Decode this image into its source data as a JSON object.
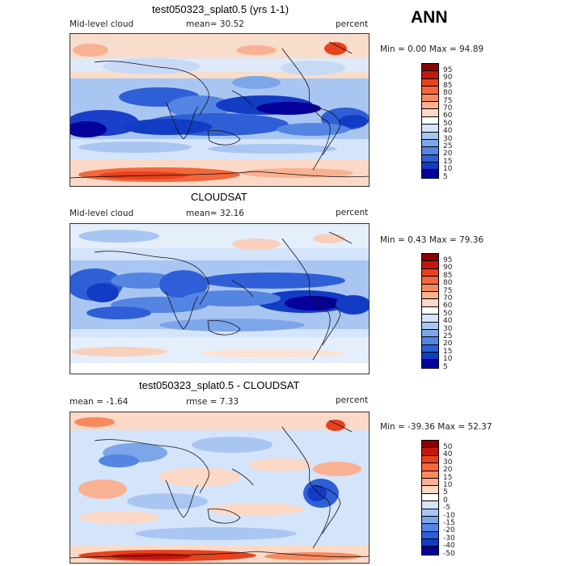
{
  "season": "ANN",
  "panels": [
    {
      "title": "test050323_splat0.5 (yrs 1-1)",
      "left_label": "Mid-level cloud",
      "mid_label": "mean=  30.52",
      "right_label": "percent",
      "minmax": "Min =    0.00 Max =  94.89",
      "colorbar_ticks": [
        "95",
        "90",
        "85",
        "80",
        "75",
        "70",
        "60",
        "50",
        "40",
        "30",
        "25",
        "20",
        "15",
        "10",
        "5"
      ],
      "colorbar_colors": [
        "#8b0000",
        "#c2180c",
        "#e8421e",
        "#f4673c",
        "#f7895f",
        "#f9b194",
        "#fcd9c6",
        "#ffffff",
        "#d4e4fa",
        "#a9c6f2",
        "#7da5ea",
        "#5585e2",
        "#2f5fd6",
        "#123cc4",
        "#06009a"
      ]
    },
    {
      "title": "CLOUDSAT",
      "left_label": "Mid-level cloud",
      "mid_label": "mean=  32.16",
      "right_label": "percent",
      "minmax": "Min =    0.43 Max =  79.36",
      "colorbar_ticks": [
        "95",
        "90",
        "85",
        "80",
        "75",
        "70",
        "60",
        "50",
        "40",
        "30",
        "25",
        "20",
        "15",
        "10",
        "5"
      ],
      "colorbar_colors": [
        "#8b0000",
        "#c2180c",
        "#e8421e",
        "#f4673c",
        "#f7895f",
        "#f9b194",
        "#fcd9c6",
        "#ffffff",
        "#d4e4fa",
        "#a9c6f2",
        "#7da5ea",
        "#5585e2",
        "#2f5fd6",
        "#123cc4",
        "#06009a"
      ]
    },
    {
      "title": "test050323_splat0.5 - CLOUDSAT",
      "left_label": "mean =   -1.64",
      "mid_label": "rmse =    7.33",
      "right_label": "percent",
      "minmax": "Min = -39.36 Max =  52.37",
      "colorbar_ticks": [
        "50",
        "40",
        "30",
        "20",
        "15",
        "10",
        "5",
        "0",
        "-5",
        "-10",
        "-15",
        "-20",
        "-30",
        "-40",
        "-50"
      ],
      "colorbar_colors": [
        "#8b0000",
        "#c2180c",
        "#e8421e",
        "#f4673c",
        "#f7895f",
        "#f9b194",
        "#fcd9c6",
        "#ffffff",
        "#d4e4fa",
        "#a9c6f2",
        "#7da5ea",
        "#5585e2",
        "#2f5fd6",
        "#123cc4",
        "#06009a"
      ]
    }
  ]
}
